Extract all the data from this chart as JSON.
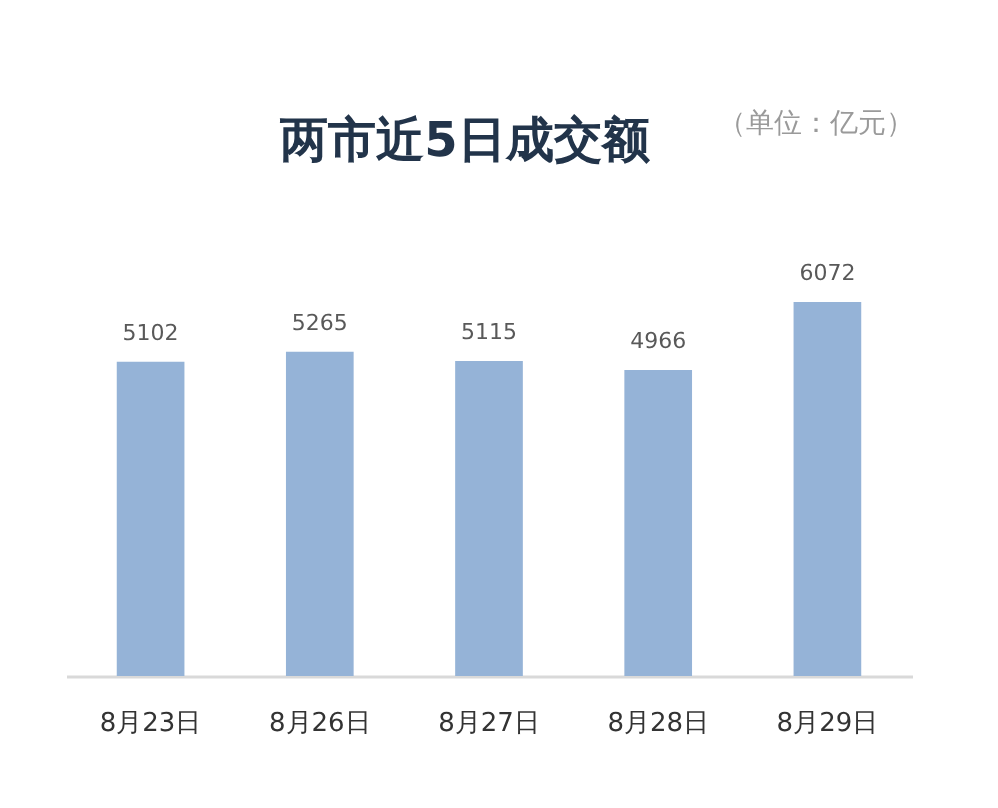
{
  "chart_data": {
    "type": "bar",
    "title": "两市近5日成交额",
    "annotations": [
      "（单位：亿元）"
    ],
    "categories": [
      "8月23日",
      "8月26日",
      "8月27日",
      "8月28日",
      "8月29日"
    ],
    "values": [
      5102,
      5265,
      5115,
      4966,
      6072
    ],
    "color": "#95b3d7",
    "data_labels": true,
    "grid": false,
    "tick_labels": "x"
  }
}
